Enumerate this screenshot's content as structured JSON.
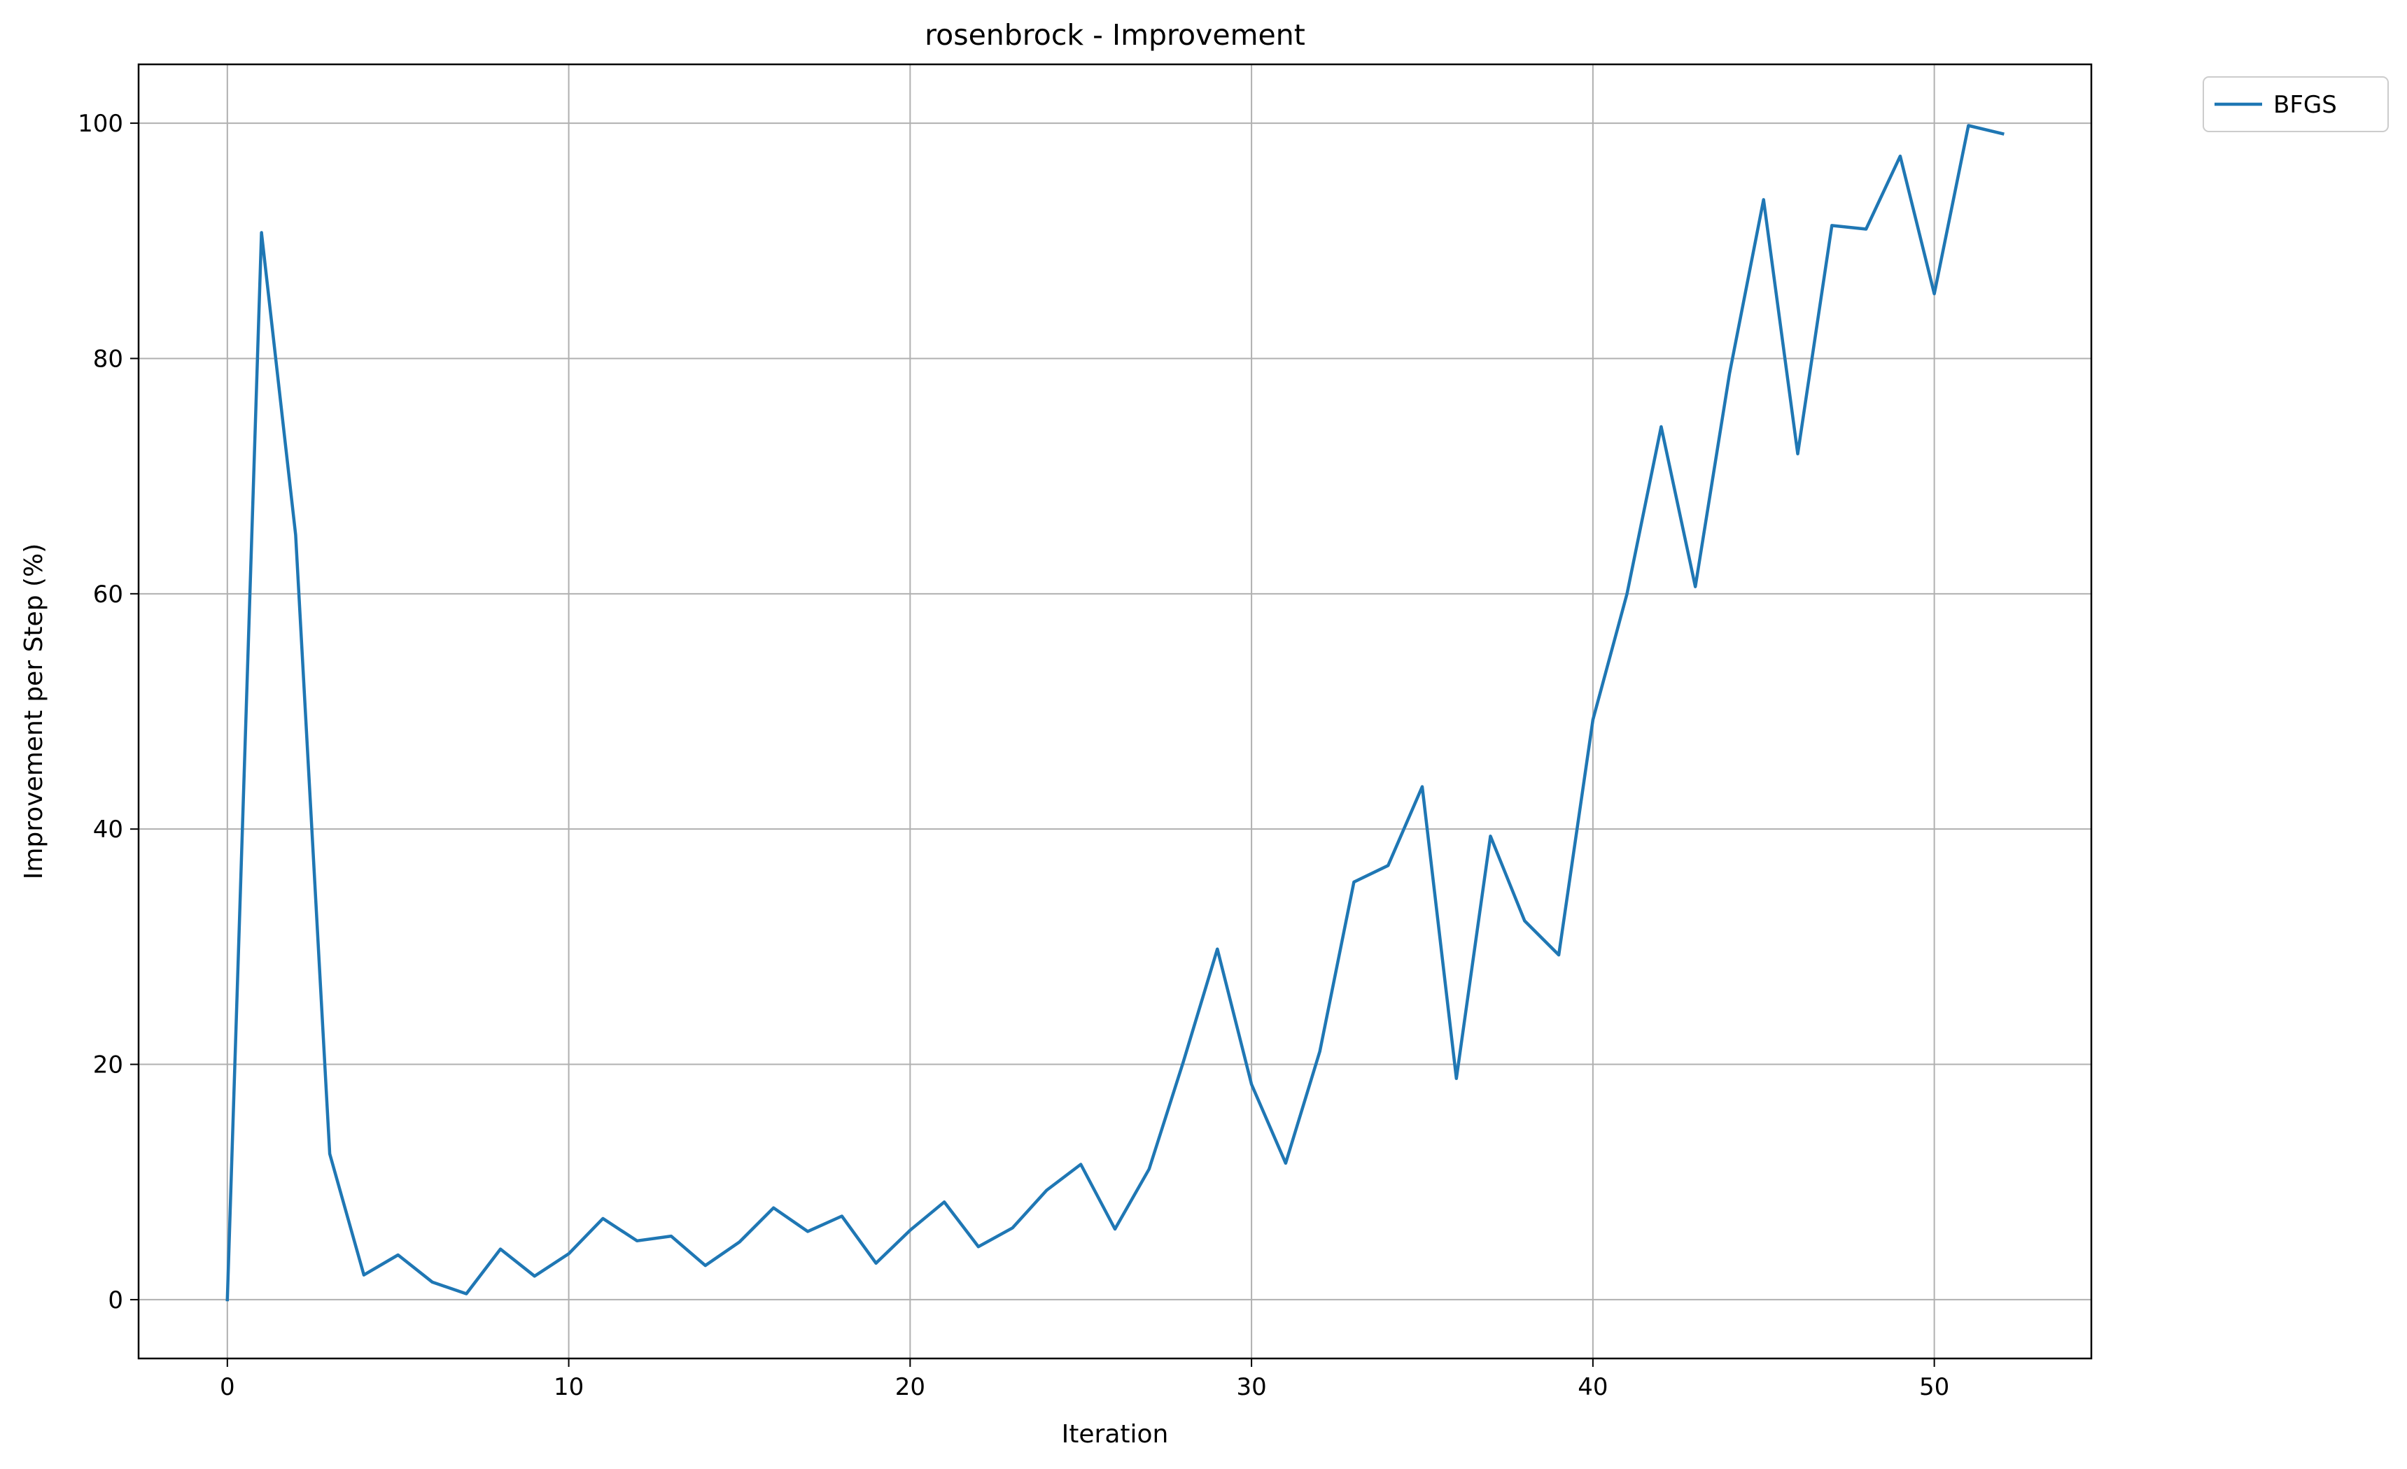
{
  "chart_data": {
    "type": "line",
    "title": "rosenbrock - Improvement",
    "xlabel": "Iteration",
    "ylabel": "Improvement per Step (%)",
    "xlim": [
      -2.6,
      54.6
    ],
    "ylim": [
      -5,
      105
    ],
    "xticks": [
      0,
      10,
      20,
      30,
      40,
      50
    ],
    "yticks": [
      0,
      20,
      40,
      60,
      80,
      100
    ],
    "grid": true,
    "legend_position": "outside-top-right",
    "series": [
      {
        "name": "BFGS",
        "color": "#1f77b4",
        "x": [
          0,
          1,
          2,
          3,
          4,
          5,
          6,
          7,
          8,
          9,
          10,
          11,
          12,
          13,
          14,
          15,
          16,
          17,
          18,
          19,
          20,
          21,
          22,
          23,
          24,
          25,
          26,
          27,
          28,
          29,
          30,
          31,
          32,
          33,
          34,
          35,
          36,
          37,
          38,
          39,
          40,
          41,
          42,
          43,
          44,
          45,
          46,
          47,
          48,
          49,
          50,
          51,
          52
        ],
        "y": [
          0,
          90.7,
          65,
          12.4,
          2.1,
          3.8,
          1.5,
          0.5,
          4.3,
          2.0,
          3.9,
          6.9,
          5.0,
          5.4,
          2.9,
          4.9,
          7.8,
          5.8,
          7.1,
          3.1,
          5.9,
          8.3,
          4.5,
          6.1,
          9.3,
          11.5,
          6.0,
          11.1,
          20.2,
          29.8,
          18.3,
          11.6,
          21.1,
          35.5,
          36.9,
          43.6,
          18.8,
          39.4,
          32.2,
          29.3,
          49.3,
          60.0,
          74.2,
          60.6,
          78.7,
          93.5,
          71.9,
          91.3,
          91.0,
          97.2,
          85.5,
          99.8,
          99.1
        ]
      }
    ]
  }
}
